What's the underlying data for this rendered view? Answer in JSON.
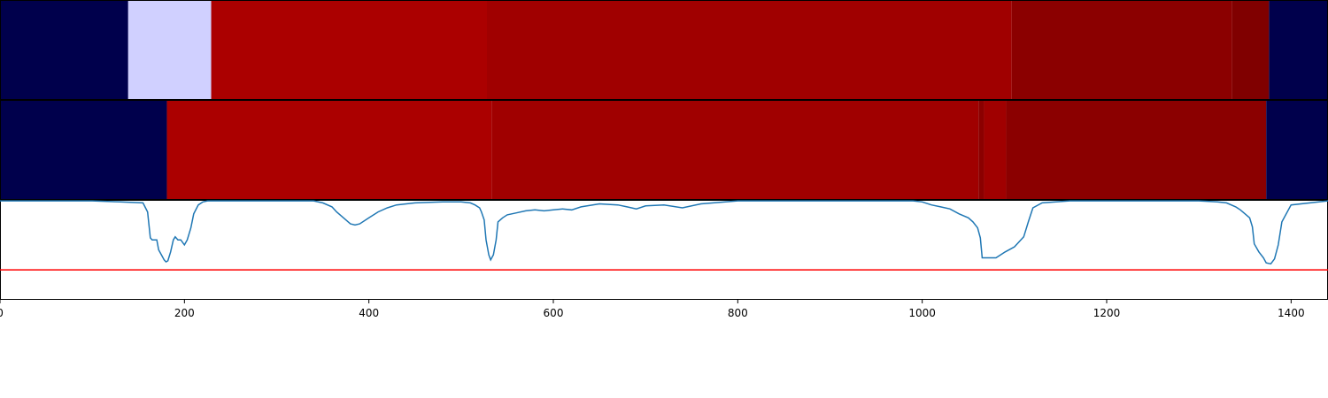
{
  "chart_data": {
    "type": "heatmap",
    "xlim": [
      0,
      1440
    ],
    "x_ticks": [
      0,
      200,
      400,
      600,
      800,
      1000,
      1200,
      1400
    ],
    "x_tick_labels": [
      "0",
      "200",
      "400",
      "600",
      "800",
      "1000",
      "1200",
      "1400"
    ],
    "grid": false,
    "legend": "none",
    "rows": [
      {
        "segments": [
          {
            "start": 0,
            "end": 139,
            "color": "#00004c"
          },
          {
            "start": 139,
            "end": 229,
            "color": "#d0d0ff"
          },
          {
            "start": 229,
            "end": 528,
            "color": "#ab0000"
          },
          {
            "start": 528,
            "end": 1097,
            "color": "#a00000"
          },
          {
            "start": 1097,
            "end": 1336,
            "color": "#8b0000"
          },
          {
            "start": 1336,
            "end": 1376,
            "color": "#800000"
          },
          {
            "start": 1376,
            "end": 1440,
            "color": "#00004c"
          }
        ]
      },
      {
        "segments": [
          {
            "start": 0,
            "end": 181,
            "color": "#00004c"
          },
          {
            "start": 181,
            "end": 533,
            "color": "#ab0000"
          },
          {
            "start": 533,
            "end": 1061,
            "color": "#a00000"
          },
          {
            "start": 1061,
            "end": 1067,
            "color": "#8b0000"
          },
          {
            "start": 1067,
            "end": 1091,
            "color": "#a00000"
          },
          {
            "start": 1091,
            "end": 1373,
            "color": "#8b0000"
          },
          {
            "start": 1373,
            "end": 1440,
            "color": "#00004c"
          }
        ]
      }
    ],
    "trace": {
      "ylim": [
        0,
        1
      ],
      "color": "#1f77b4",
      "threshold": 0.3,
      "threshold_color": "#ff0000",
      "x": [
        0,
        100,
        130,
        155,
        160,
        163,
        165,
        170,
        172,
        175,
        178,
        180,
        182,
        185,
        188,
        190,
        193,
        196,
        200,
        203,
        207,
        210,
        215,
        220,
        225,
        240,
        300,
        340,
        350,
        360,
        365,
        370,
        375,
        380,
        385,
        390,
        400,
        410,
        420,
        430,
        450,
        480,
        500,
        510,
        515,
        520,
        522,
        525,
        527,
        530,
        532,
        535,
        538,
        540,
        545,
        550,
        560,
        570,
        580,
        590,
        600,
        610,
        620,
        630,
        650,
        670,
        680,
        690,
        700,
        720,
        740,
        760,
        800,
        900,
        990,
        1000,
        1010,
        1020,
        1030,
        1040,
        1050,
        1055,
        1060,
        1063,
        1065,
        1070,
        1080,
        1090,
        1100,
        1105,
        1110,
        1115,
        1120,
        1130,
        1160,
        1200,
        1300,
        1320,
        1330,
        1340,
        1345,
        1350,
        1355,
        1358,
        1360,
        1365,
        1370,
        1373,
        1378,
        1382,
        1386,
        1390,
        1400,
        1440
      ],
      "y": [
        0.99,
        0.99,
        0.98,
        0.97,
        0.88,
        0.62,
        0.6,
        0.6,
        0.5,
        0.45,
        0.4,
        0.38,
        0.39,
        0.48,
        0.6,
        0.63,
        0.6,
        0.6,
        0.55,
        0.6,
        0.72,
        0.86,
        0.95,
        0.98,
        0.99,
        0.99,
        0.99,
        0.99,
        0.97,
        0.93,
        0.88,
        0.84,
        0.8,
        0.76,
        0.75,
        0.76,
        0.82,
        0.88,
        0.92,
        0.95,
        0.97,
        0.98,
        0.98,
        0.97,
        0.95,
        0.92,
        0.88,
        0.8,
        0.6,
        0.45,
        0.4,
        0.45,
        0.6,
        0.78,
        0.82,
        0.85,
        0.87,
        0.89,
        0.9,
        0.89,
        0.9,
        0.91,
        0.9,
        0.93,
        0.96,
        0.95,
        0.93,
        0.91,
        0.94,
        0.95,
        0.92,
        0.96,
        0.99,
        0.99,
        0.99,
        0.98,
        0.95,
        0.93,
        0.91,
        0.86,
        0.82,
        0.78,
        0.72,
        0.62,
        0.42,
        0.42,
        0.42,
        0.48,
        0.53,
        0.58,
        0.63,
        0.78,
        0.92,
        0.97,
        0.99,
        0.99,
        0.99,
        0.98,
        0.97,
        0.93,
        0.9,
        0.86,
        0.82,
        0.73,
        0.56,
        0.48,
        0.42,
        0.37,
        0.36,
        0.41,
        0.55,
        0.78,
        0.95,
        0.99
      ]
    }
  }
}
